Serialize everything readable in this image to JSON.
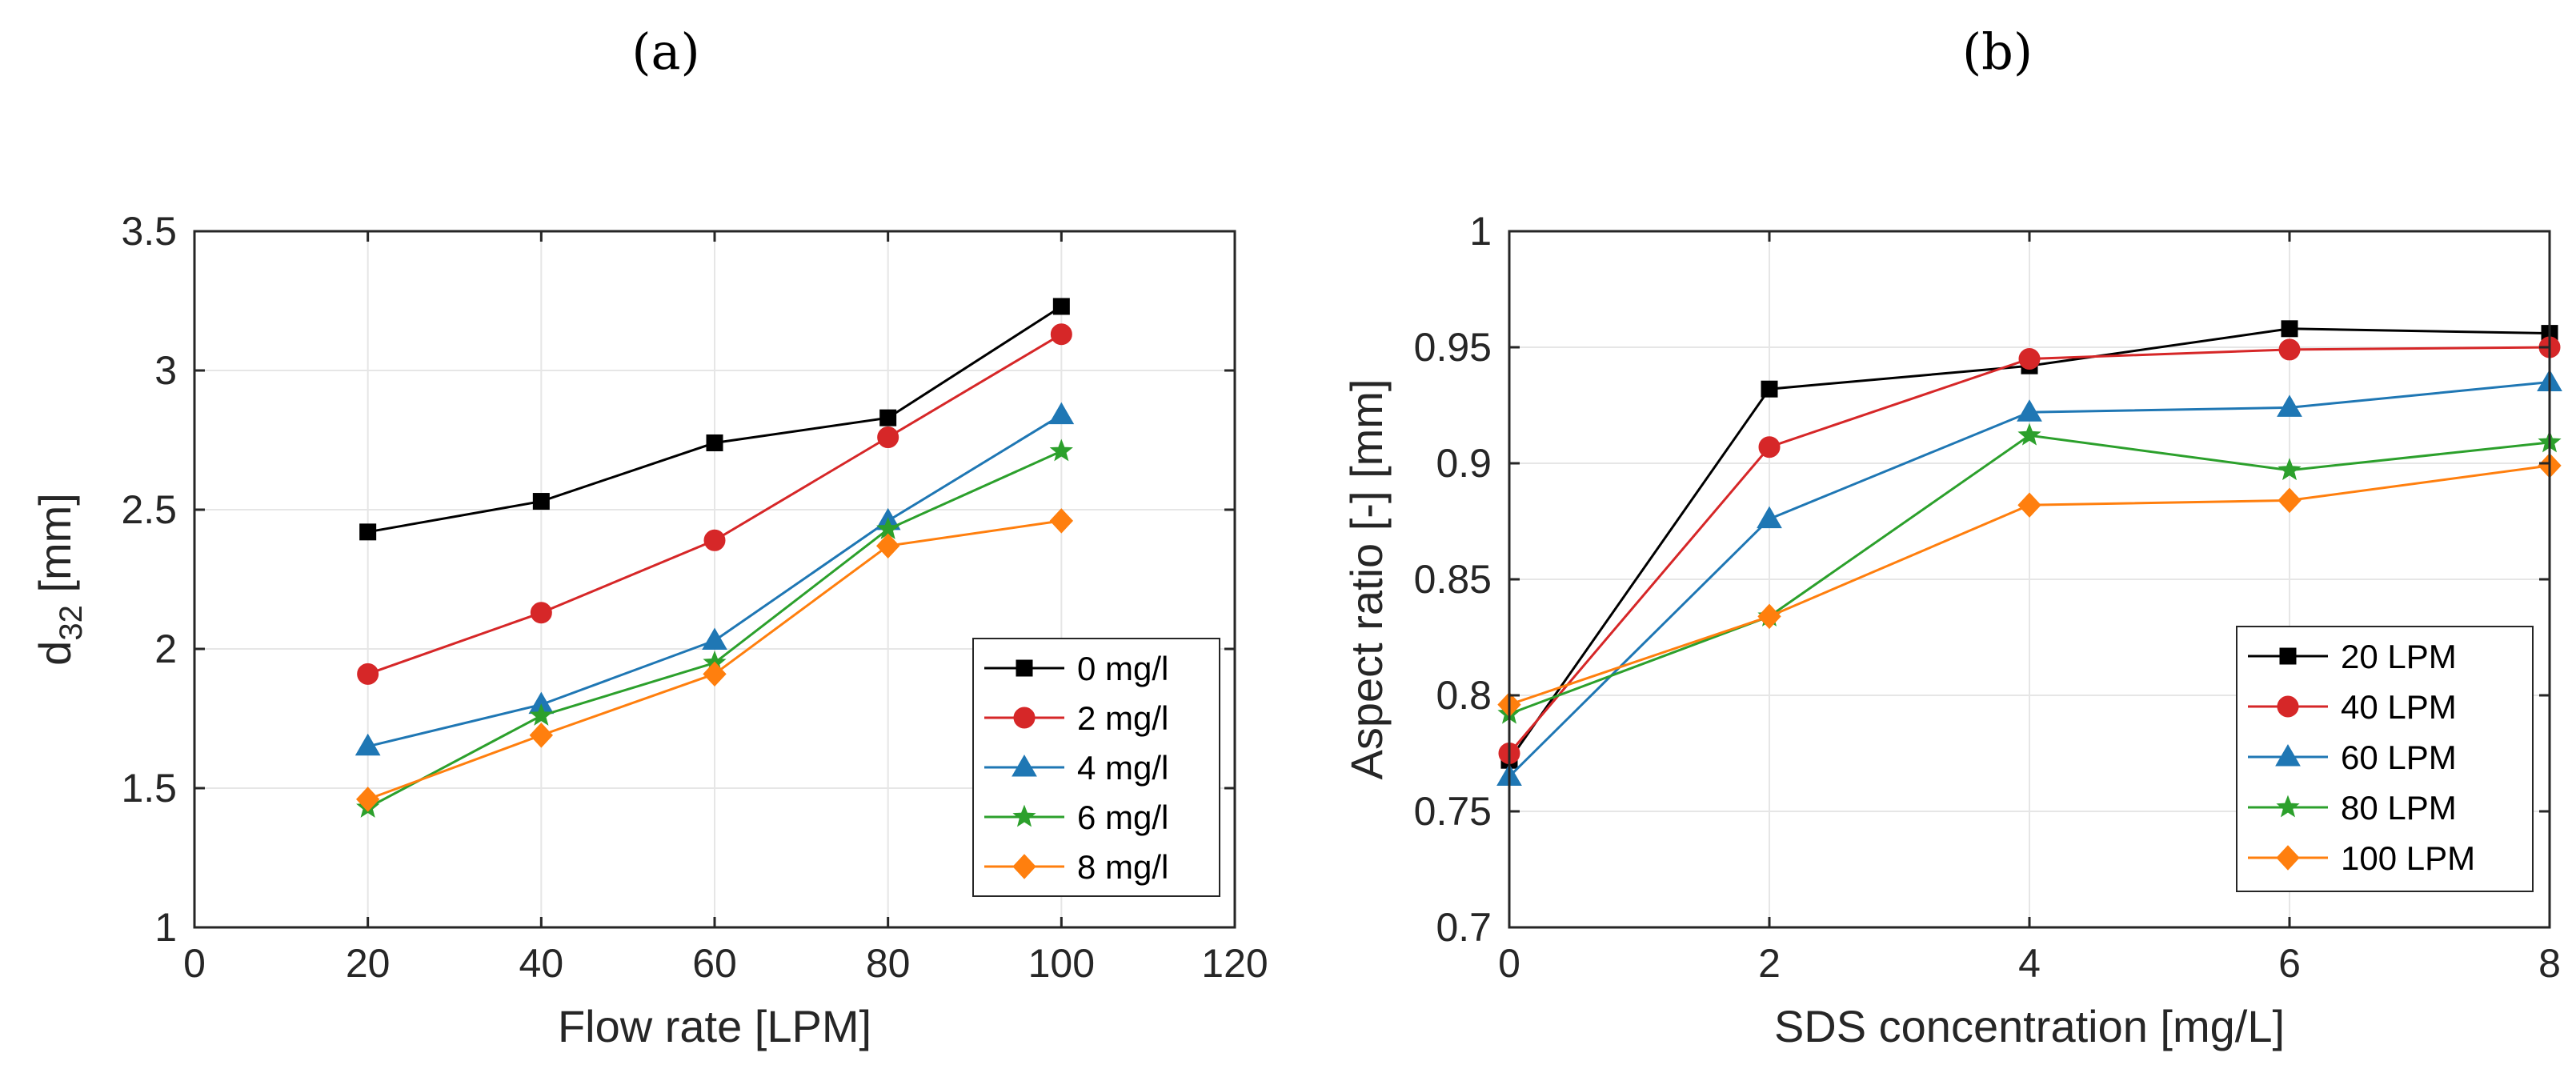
{
  "panel_labels": [
    "(a)",
    "(b)"
  ],
  "colors": {
    "series": [
      "#000000",
      "#d62728",
      "#1f77b4",
      "#2ca02c",
      "#ff7f0e"
    ],
    "grid": "#e6e6e6",
    "axis": "#262626"
  },
  "chart_data": [
    {
      "type": "line",
      "title": "(a)",
      "xlabel": "Flow rate [LPM]",
      "ylabel_main": "d",
      "ylabel_sub": "32",
      "ylabel_unit": " [mm]",
      "xlim": [
        0,
        120
      ],
      "ylim": [
        1,
        3.5
      ],
      "xticks": [
        "0",
        "20",
        "40",
        "60",
        "80",
        "100",
        "120"
      ],
      "yticks": [
        "1",
        "1.5",
        "2",
        "2.5",
        "3",
        "3.5"
      ],
      "grid": true,
      "legend_position": "bottom-right",
      "x": [
        20,
        40,
        60,
        80,
        100
      ],
      "series": [
        {
          "name": "0 mg/l",
          "marker": "square",
          "values": [
            2.42,
            2.53,
            2.74,
            2.83,
            3.23
          ]
        },
        {
          "name": "2 mg/l",
          "marker": "circle",
          "values": [
            1.91,
            2.13,
            2.39,
            2.76,
            3.13
          ]
        },
        {
          "name": "4 mg/l",
          "marker": "triangle",
          "values": [
            1.65,
            1.8,
            2.03,
            2.46,
            2.84
          ]
        },
        {
          "name": "6 mg/l",
          "marker": "star",
          "values": [
            1.43,
            1.76,
            1.95,
            2.43,
            2.71
          ]
        },
        {
          "name": "8 mg/l",
          "marker": "diamond",
          "values": [
            1.46,
            1.69,
            1.91,
            2.37,
            2.46
          ]
        }
      ]
    },
    {
      "type": "line",
      "title": "(b)",
      "xlabel": "SDS concentration [mg/L]",
      "ylabel": "Aspect ratio [-] [mm]",
      "xlim": [
        0,
        8
      ],
      "ylim": [
        0.7,
        1
      ],
      "xticks": [
        "0",
        "2",
        "4",
        "6",
        "8"
      ],
      "yticks": [
        "0.7",
        "0.75",
        "0.8",
        "0.85",
        "0.9",
        "0.95",
        "1"
      ],
      "grid": true,
      "legend_position": "bottom-right",
      "x": [
        0,
        2,
        4,
        6,
        8
      ],
      "series": [
        {
          "name": "20 LPM",
          "marker": "square",
          "values": [
            0.772,
            0.932,
            0.942,
            0.958,
            0.956
          ]
        },
        {
          "name": "40 LPM",
          "marker": "circle",
          "values": [
            0.775,
            0.907,
            0.945,
            0.949,
            0.95
          ]
        },
        {
          "name": "60 LPM",
          "marker": "triangle",
          "values": [
            0.765,
            0.876,
            0.922,
            0.924,
            0.935
          ]
        },
        {
          "name": "80 LPM",
          "marker": "star",
          "values": [
            0.792,
            0.834,
            0.912,
            0.897,
            0.909
          ]
        },
        {
          "name": "100 LPM",
          "marker": "diamond",
          "values": [
            0.796,
            0.834,
            0.882,
            0.884,
            0.899
          ]
        }
      ]
    }
  ]
}
